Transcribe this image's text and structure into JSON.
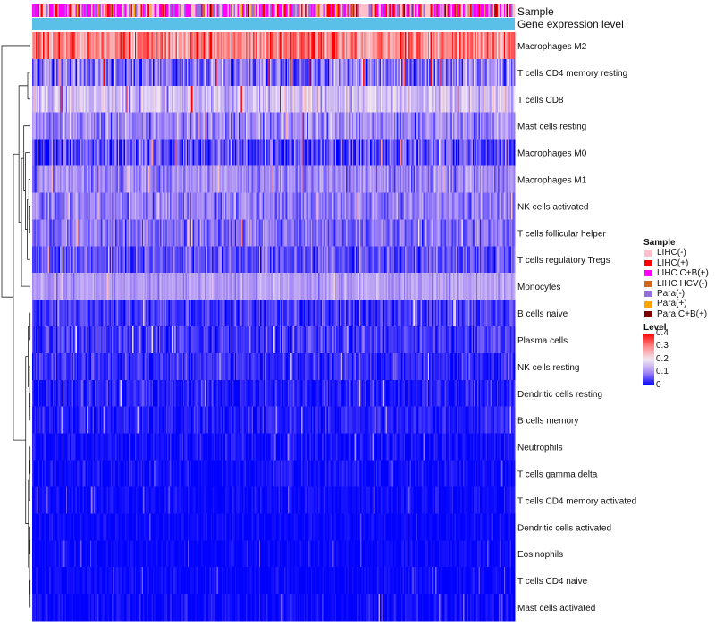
{
  "chart_data": {
    "type": "heatmap",
    "title": "",
    "annotation_tracks": [
      "Sample",
      "Gene expression level"
    ],
    "rows": [
      {
        "label": "Macrophages M2",
        "mean": 0.3,
        "spread": 0.07
      },
      {
        "label": "T cells CD4 memory resting",
        "mean": 0.09,
        "spread": 0.07
      },
      {
        "label": "T cells CD8",
        "mean": 0.16,
        "spread": 0.06
      },
      {
        "label": "Mast cells resting",
        "mean": 0.1,
        "spread": 0.05
      },
      {
        "label": "Macrophages M0",
        "mean": 0.05,
        "spread": 0.06
      },
      {
        "label": "Macrophages M1",
        "mean": 0.1,
        "spread": 0.04
      },
      {
        "label": "NK cells activated",
        "mean": 0.09,
        "spread": 0.04
      },
      {
        "label": "T cells follicular helper",
        "mean": 0.08,
        "spread": 0.04
      },
      {
        "label": "T cells regulatory  Tregs",
        "mean": 0.06,
        "spread": 0.04
      },
      {
        "label": "Monocytes",
        "mean": 0.12,
        "spread": 0.03
      },
      {
        "label": "B cells naive",
        "mean": 0.04,
        "spread": 0.035
      },
      {
        "label": "Plasma cells",
        "mean": 0.04,
        "spread": 0.035
      },
      {
        "label": "NK cells resting",
        "mean": 0.03,
        "spread": 0.03
      },
      {
        "label": "Dendritic cells resting",
        "mean": 0.02,
        "spread": 0.03
      },
      {
        "label": "B cells memory",
        "mean": 0.02,
        "spread": 0.025
      },
      {
        "label": "Neutrophils",
        "mean": 0.01,
        "spread": 0.02
      },
      {
        "label": "T cells gamma delta",
        "mean": 0.01,
        "spread": 0.02
      },
      {
        "label": "T cells CD4 memory activated",
        "mean": 0.008,
        "spread": 0.015
      },
      {
        "label": "Dendritic cells activated",
        "mean": 0.005,
        "spread": 0.012
      },
      {
        "label": "Eosinophils",
        "mean": 0.004,
        "spread": 0.012
      },
      {
        "label": "T cells CD4 naive",
        "mean": 0.005,
        "spread": 0.015
      },
      {
        "label": "Mast cells activated",
        "mean": 0.005,
        "spread": 0.02
      }
    ],
    "n_samples": 400,
    "color_scale": {
      "name": "Level",
      "min": 0,
      "max": 0.4,
      "ticks": [
        "0.4",
        "0.3",
        "0.2",
        "0.1",
        "0"
      ],
      "colors": [
        "#0000ff",
        "#a78af5",
        "#f2e8f2",
        "#ff8a8a",
        "#ff0000"
      ]
    },
    "sample_groups": [
      {
        "label": "LIHC(-)",
        "color": "#ffc0cb"
      },
      {
        "label": "LIHC(+)",
        "color": "#ff0000"
      },
      {
        "label": "LIHC C+B(+)",
        "color": "#ff00ff"
      },
      {
        "label": "LIHC HCV(-)",
        "color": "#d2691e"
      },
      {
        "label": "Para(-)",
        "color": "#9370db"
      },
      {
        "label": "Para(+)",
        "color": "#ffa500"
      },
      {
        "label": "Para C+B(+)",
        "color": "#800000"
      }
    ],
    "gene_expression_color": "#5bc0e8"
  },
  "legend": {
    "sample_title": "Sample",
    "level_title": "Level"
  }
}
